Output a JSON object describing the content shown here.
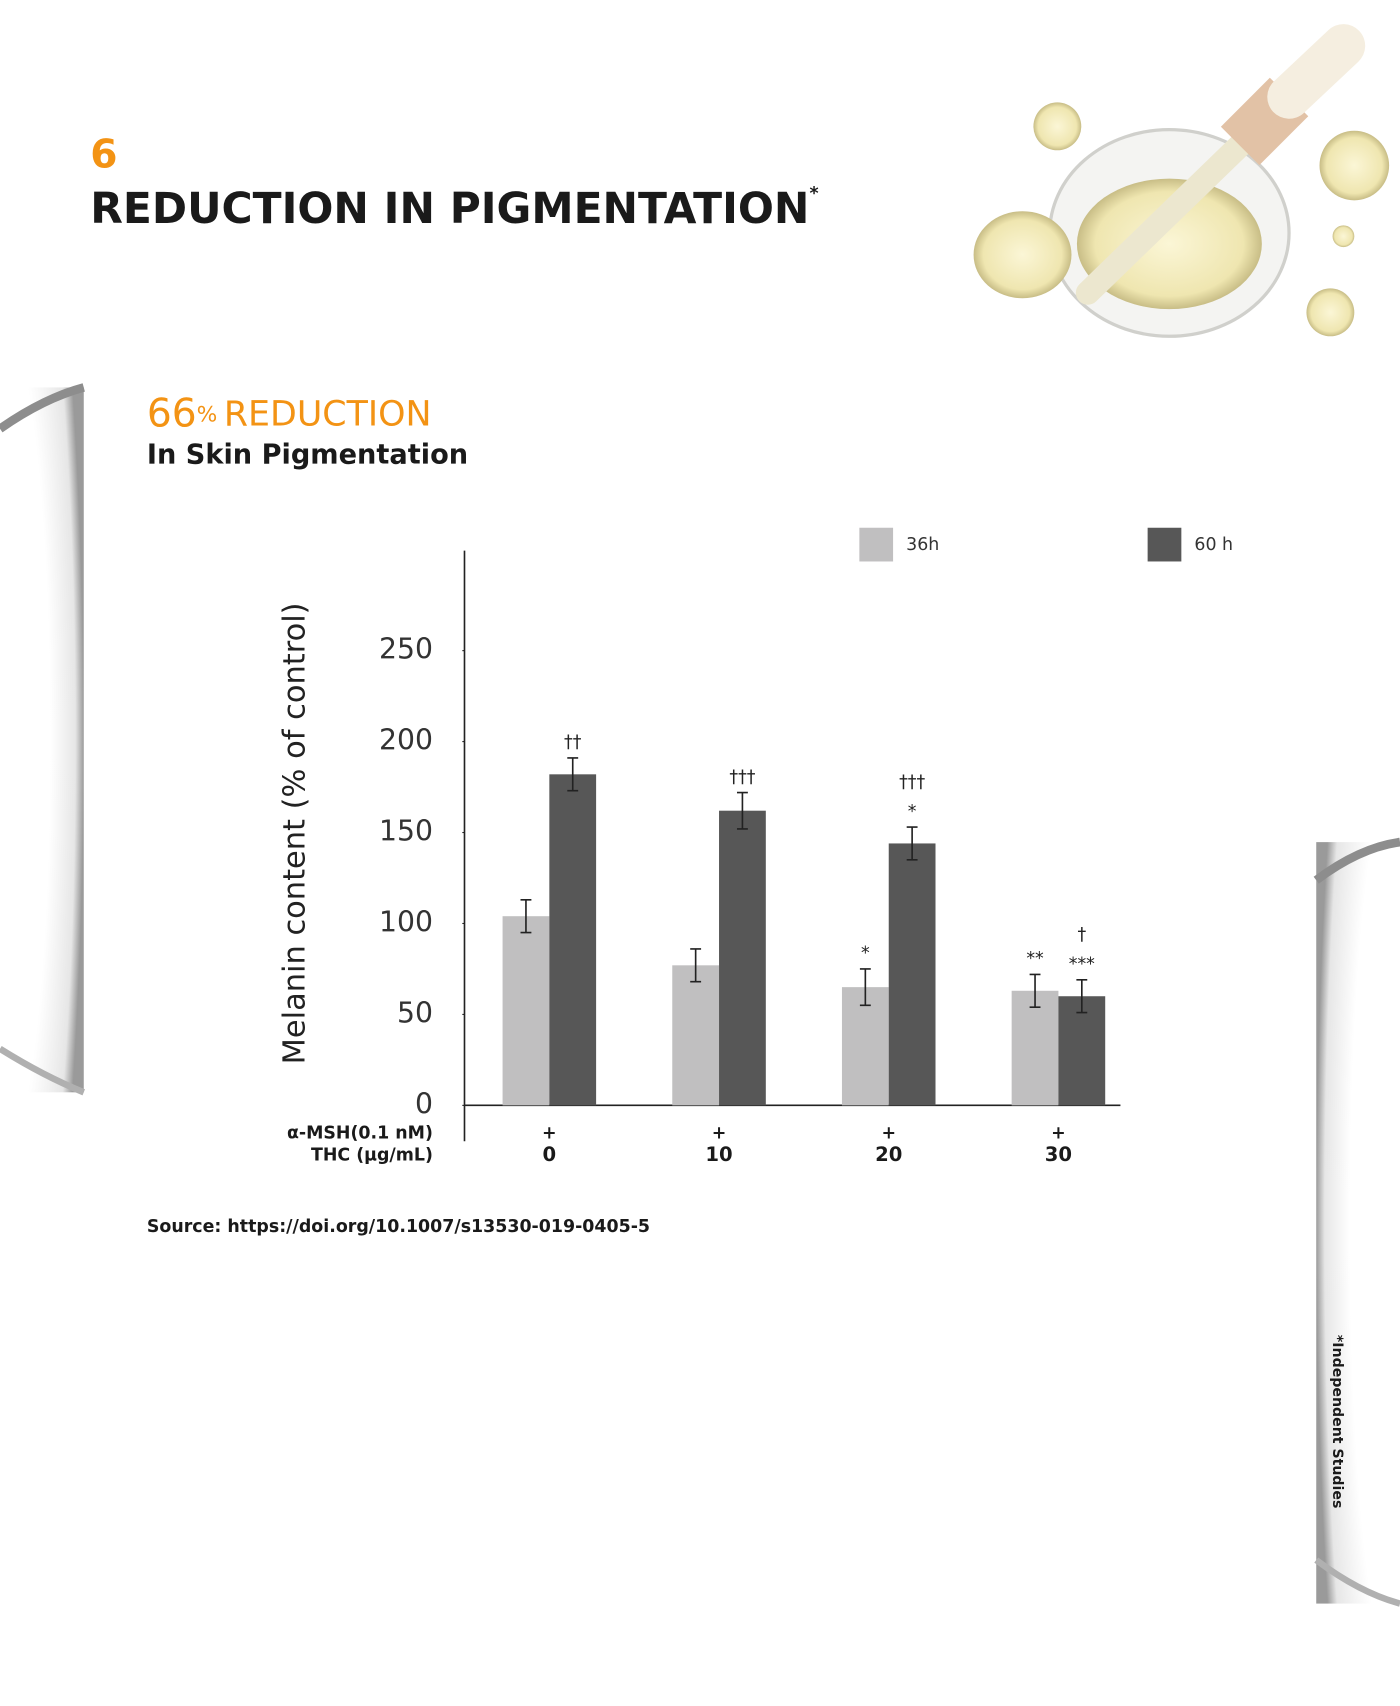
{
  "number": "6",
  "title": "REDUCTION IN PIGMENTATION",
  "title_mark": "*",
  "stat_value": "66",
  "stat_unit": "%",
  "stat_label": "REDUCTION",
  "subtitle": "In Skin Pigmentation",
  "source": "Source: https://doi.org/10.1007/s13530-019-0405-5",
  "side_note": "*Independent Studies",
  "chart_data": {
    "type": "bar",
    "y_label": "Melanin content (% of control)",
    "row_labels": [
      "α-MSH(0.1 nM)",
      "THC (µg/mL)"
    ],
    "msh": [
      "+",
      "+",
      "+",
      "+"
    ],
    "categories": [
      "0",
      "10",
      "20",
      "30"
    ],
    "series": [
      {
        "name": "36h",
        "color": "#c0bfc0",
        "values": [
          104,
          77,
          65,
          63
        ],
        "errors": [
          9,
          9,
          10,
          9
        ],
        "annotations": [
          [],
          [],
          [
            "*"
          ],
          [
            "**"
          ]
        ]
      },
      {
        "name": "60 h",
        "color": "#575757",
        "values": [
          182,
          162,
          144,
          60
        ],
        "errors": [
          9,
          10,
          9,
          9
        ],
        "annotations": [
          [
            "††"
          ],
          [
            "†††"
          ],
          [
            "†††",
            "*"
          ],
          [
            "†",
            "***"
          ]
        ]
      }
    ],
    "ylim": [
      0,
      305
    ],
    "yticks": [
      0,
      50,
      100,
      150,
      200,
      250
    ],
    "legend": "top-right"
  }
}
